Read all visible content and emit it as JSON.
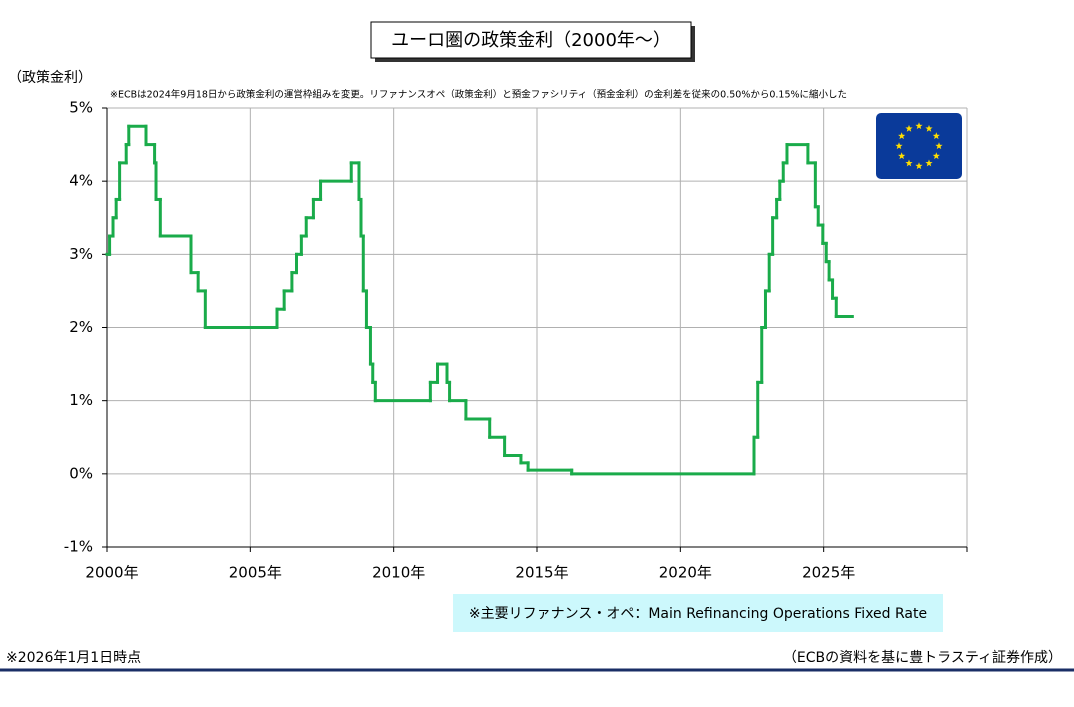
{
  "chart_data": {
    "type": "step-line",
    "title": "ユーロ圏の政策金利（2000年～）",
    "y_axis_label": "（政策金利）",
    "note": "※ECBは2024年9月18日から政策金利の運営枠組みを変更。リファナンスオペ（政策金利）と預金ファシリティ（預金金利）の金利差を従来の0.50%から0.15%に縮小した",
    "footnote": "※2026年1月1日時点",
    "source": "（ECBの資料を基に豊トラスティ証券作成）",
    "x": [
      2000.0,
      2000.09,
      2000.21,
      2000.32,
      2000.44,
      2000.67,
      2000.76,
      2001.36,
      2001.66,
      2001.71,
      2001.86,
      2002.93,
      2003.18,
      2003.43,
      2005.93,
      2006.18,
      2006.45,
      2006.61,
      2006.78,
      2006.95,
      2007.2,
      2007.45,
      2008.52,
      2008.79,
      2008.86,
      2008.94,
      2009.05,
      2009.19,
      2009.27,
      2009.36,
      2011.28,
      2011.53,
      2011.86,
      2011.95,
      2012.52,
      2013.35,
      2013.87,
      2014.44,
      2014.69,
      2016.21,
      2022.57,
      2022.7,
      2022.84,
      2022.97,
      2023.1,
      2023.22,
      2023.36,
      2023.47,
      2023.59,
      2023.72,
      2024.45,
      2024.71,
      2024.81,
      2024.97,
      2025.09,
      2025.19,
      2025.31,
      2025.44,
      2026.0
    ],
    "series": [
      {
        "name": "※主要リファナンス・オペ：Main Refinancing Operations Fixed Rate",
        "color": "#1aab4a",
        "values": [
          3.0,
          3.25,
          3.5,
          3.75,
          4.25,
          4.5,
          4.75,
          4.5,
          4.25,
          3.75,
          3.25,
          2.75,
          2.5,
          2.0,
          2.25,
          2.5,
          2.75,
          3.0,
          3.25,
          3.5,
          3.75,
          4.0,
          4.25,
          3.75,
          3.25,
          2.5,
          2.0,
          1.5,
          1.25,
          1.0,
          1.25,
          1.5,
          1.25,
          1.0,
          0.75,
          0.5,
          0.25,
          0.15,
          0.05,
          0.0,
          0.5,
          1.25,
          2.0,
          2.5,
          3.0,
          3.5,
          3.75,
          4.0,
          4.25,
          4.5,
          4.25,
          3.65,
          3.4,
          3.15,
          2.9,
          2.65,
          2.4,
          2.15,
          2.15
        ]
      }
    ],
    "xlim": [
      2000,
      2030
    ],
    "xticks": [
      {
        "value": 2000,
        "label": "2000年"
      },
      {
        "value": 2005,
        "label": "2005年"
      },
      {
        "value": 2010,
        "label": "2010年"
      },
      {
        "value": 2015,
        "label": "2015年"
      },
      {
        "value": 2020,
        "label": "2020年"
      },
      {
        "value": 2025,
        "label": "2025年"
      },
      {
        "value": 2030,
        "label": ""
      }
    ],
    "ylim": [
      -1,
      5
    ],
    "yticks": [
      {
        "value": -1,
        "label": "-1%"
      },
      {
        "value": 0,
        "label": "0%"
      },
      {
        "value": 1,
        "label": "1%"
      },
      {
        "value": 2,
        "label": "2%"
      },
      {
        "value": 3,
        "label": "3%"
      },
      {
        "value": 4,
        "label": "4%"
      },
      {
        "value": 5,
        "label": "5%"
      }
    ],
    "negative_tick_color": "#e00000",
    "grid": true
  }
}
